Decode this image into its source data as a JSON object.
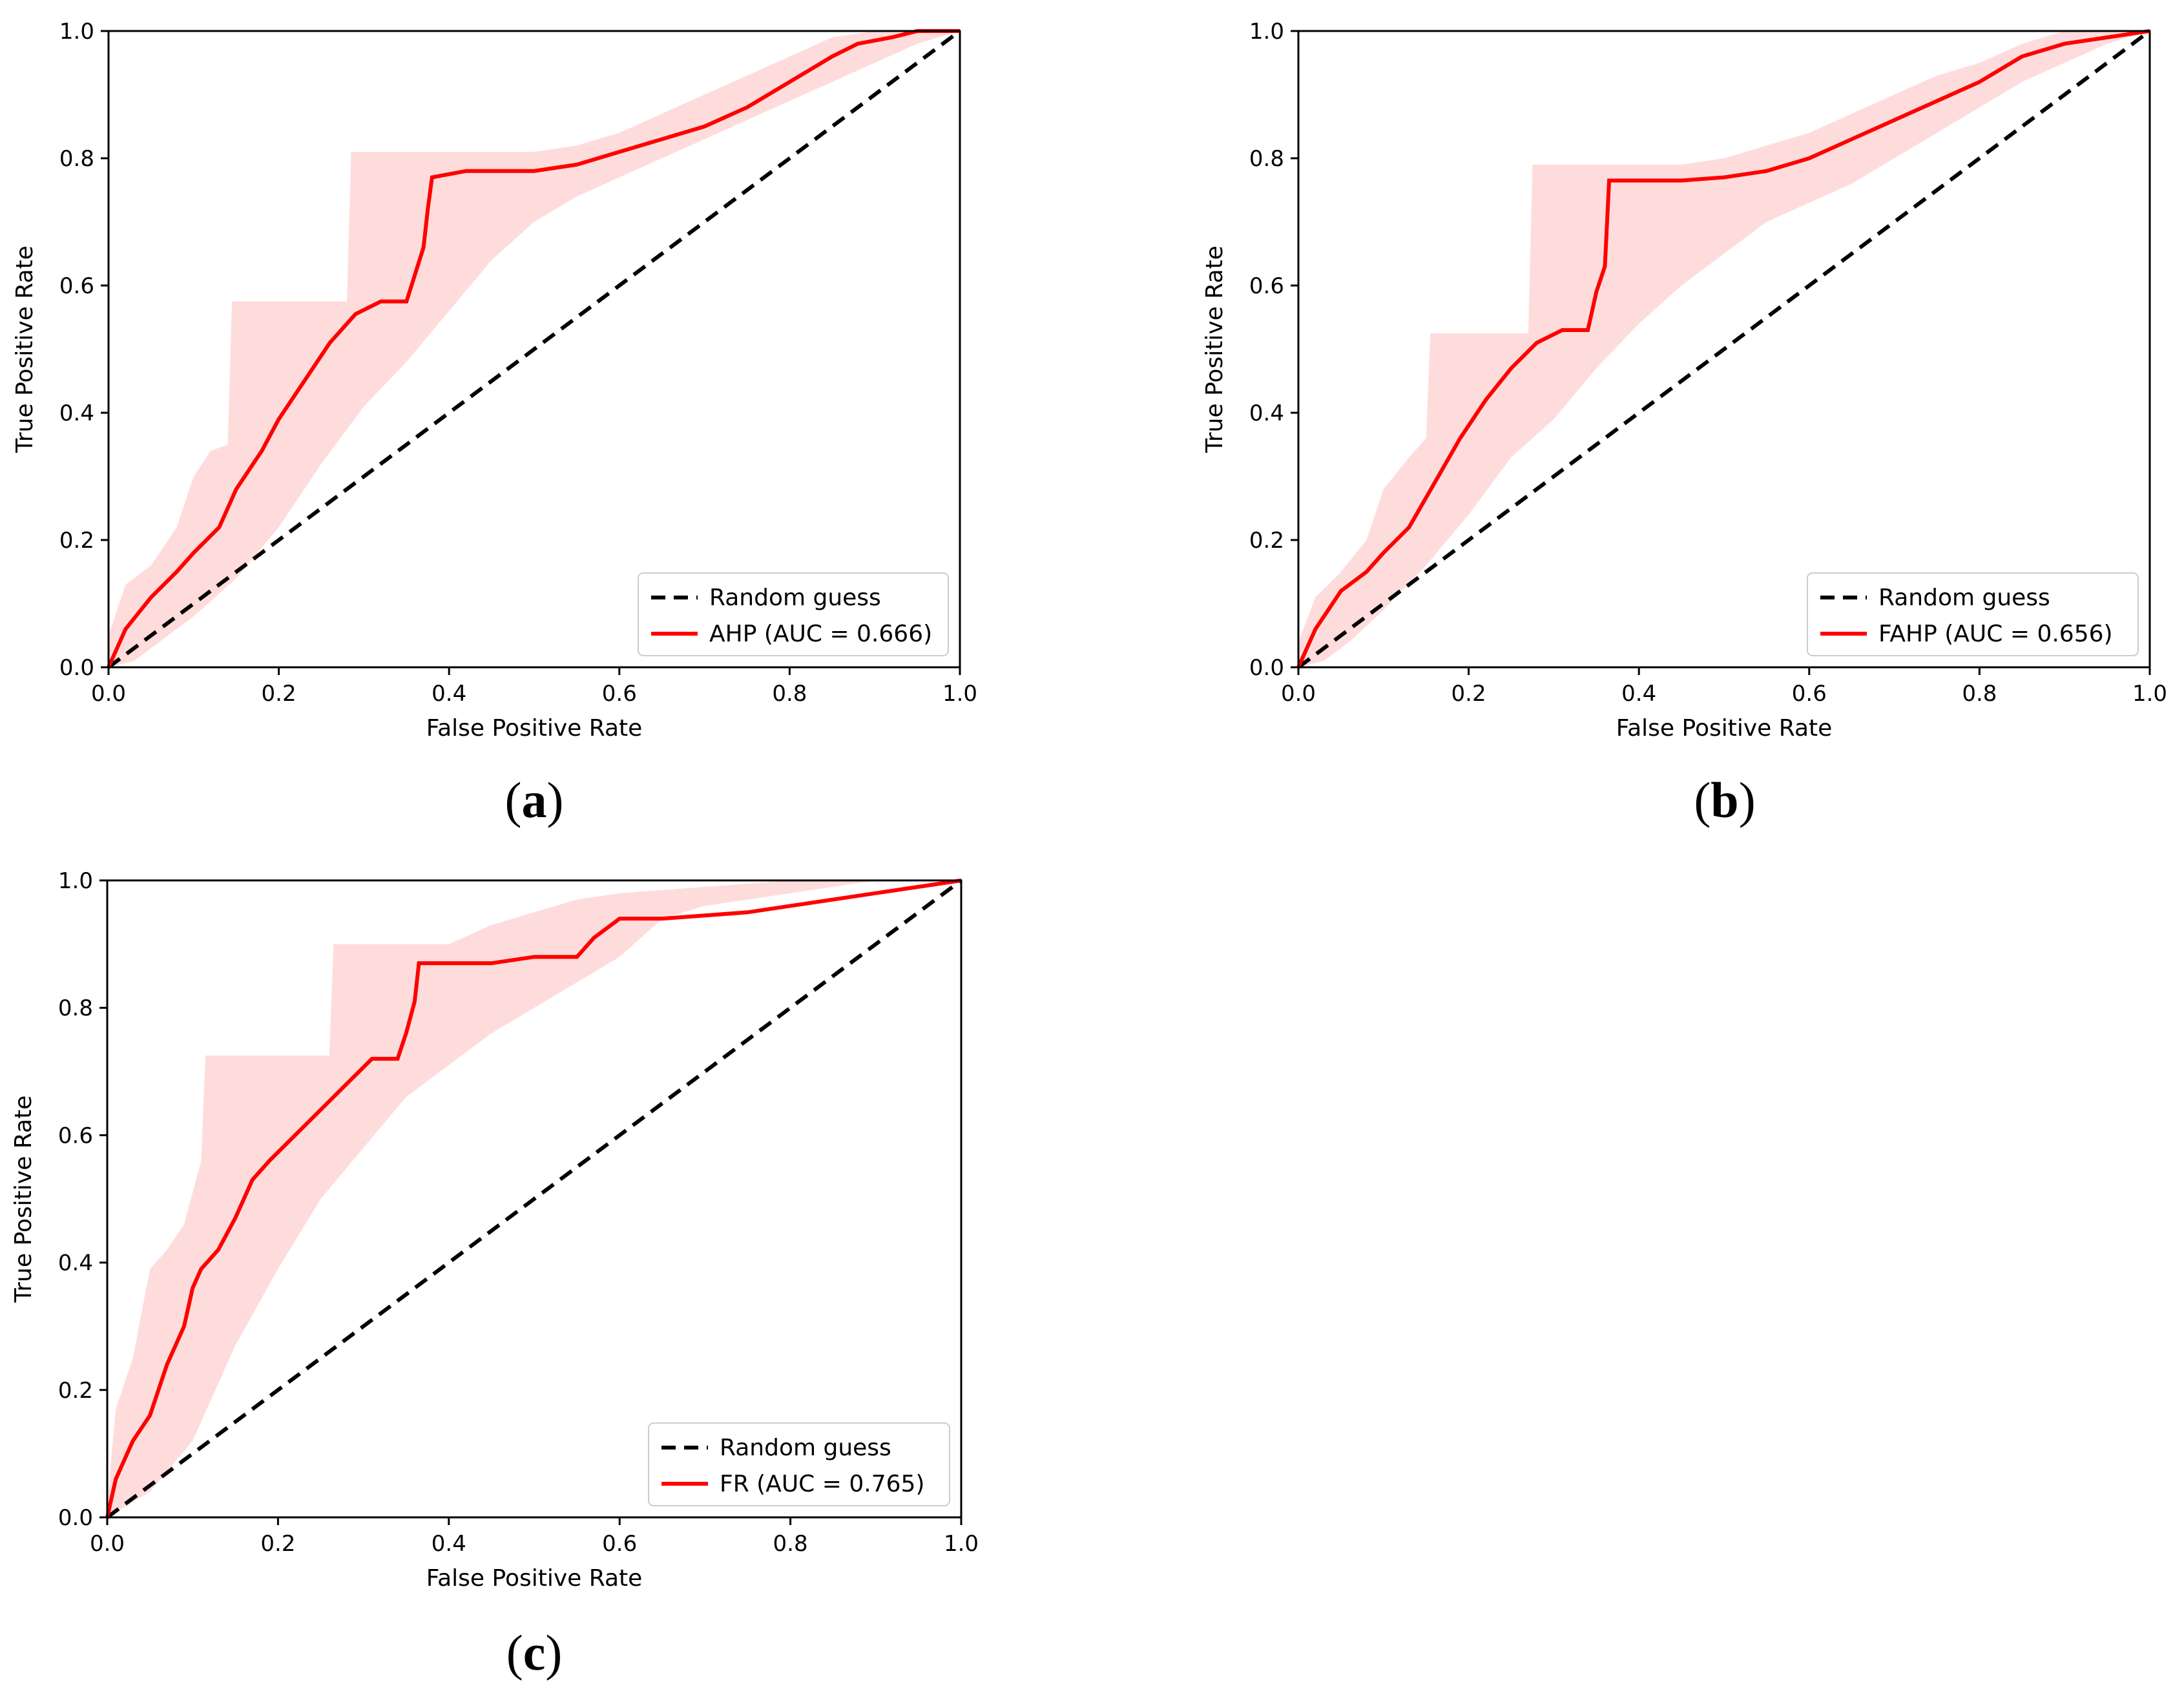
{
  "colors": {
    "roc_line": "#ff0000",
    "ci_band": "#ffd6d6",
    "random_line": "#000000",
    "axes": "#000000"
  },
  "chart_data": [
    {
      "type": "line",
      "panel_label": "a",
      "xlabel": "False Positive Rate",
      "ylabel": "True Positive Rate",
      "xlim": [
        0.0,
        1.0
      ],
      "ylim": [
        0.0,
        1.0
      ],
      "xticks": [
        "0.0",
        "0.2",
        "0.4",
        "0.6",
        "0.8",
        "1.0"
      ],
      "yticks": [
        "0.0",
        "0.2",
        "0.4",
        "0.6",
        "0.8",
        "1.0"
      ],
      "grid": false,
      "legend_position": "lower-right",
      "series": [
        {
          "name": "Random guess",
          "style": "dashed",
          "x": [
            0,
            1
          ],
          "y": [
            0,
            1
          ]
        },
        {
          "name": "AHP (AUC = 0.666)",
          "style": "solid",
          "x": [
            0,
            0.02,
            0.05,
            0.08,
            0.1,
            0.13,
            0.15,
            0.18,
            0.2,
            0.23,
            0.26,
            0.29,
            0.32,
            0.35,
            0.37,
            0.375,
            0.38,
            0.42,
            0.5,
            0.55,
            0.6,
            0.65,
            0.7,
            0.75,
            0.8,
            0.85,
            0.88,
            0.92,
            0.95,
            1.0
          ],
          "y": [
            0,
            0.06,
            0.11,
            0.15,
            0.18,
            0.22,
            0.28,
            0.34,
            0.39,
            0.45,
            0.51,
            0.555,
            0.575,
            0.575,
            0.66,
            0.72,
            0.77,
            0.78,
            0.78,
            0.79,
            0.81,
            0.83,
            0.85,
            0.88,
            0.92,
            0.96,
            0.98,
            0.99,
            1.0,
            1.0
          ]
        },
        {
          "name": "CI upper",
          "style": "band-upper",
          "x": [
            0,
            0.02,
            0.05,
            0.08,
            0.1,
            0.12,
            0.14,
            0.145,
            0.28,
            0.285,
            0.32,
            0.36,
            0.4,
            0.5,
            0.55,
            0.6,
            0.65,
            0.7,
            0.75,
            0.8,
            0.85,
            0.9,
            0.95,
            1.0
          ],
          "y": [
            0.05,
            0.13,
            0.16,
            0.22,
            0.3,
            0.34,
            0.35,
            0.575,
            0.575,
            0.81,
            0.81,
            0.81,
            0.81,
            0.81,
            0.82,
            0.84,
            0.87,
            0.9,
            0.93,
            0.96,
            0.99,
            1.0,
            1.0,
            1.0
          ]
        },
        {
          "name": "CI lower",
          "style": "band-lower",
          "x": [
            0,
            0.03,
            0.06,
            0.1,
            0.15,
            0.2,
            0.25,
            0.3,
            0.35,
            0.4,
            0.45,
            0.5,
            0.55,
            0.6,
            0.65,
            0.7,
            0.75,
            0.8,
            0.85,
            0.9,
            0.95,
            1.0
          ],
          "y": [
            0,
            0.01,
            0.04,
            0.08,
            0.14,
            0.22,
            0.32,
            0.41,
            0.48,
            0.56,
            0.64,
            0.7,
            0.74,
            0.77,
            0.8,
            0.83,
            0.86,
            0.89,
            0.92,
            0.95,
            0.98,
            1.0
          ]
        }
      ]
    },
    {
      "type": "line",
      "panel_label": "b",
      "xlabel": "False Positive Rate",
      "ylabel": "True Positive Rate",
      "xlim": [
        0.0,
        1.0
      ],
      "ylim": [
        0.0,
        1.0
      ],
      "xticks": [
        "0.0",
        "0.2",
        "0.4",
        "0.6",
        "0.8",
        "1.0"
      ],
      "yticks": [
        "0.0",
        "0.2",
        "0.4",
        "0.6",
        "0.8",
        "1.0"
      ],
      "grid": false,
      "legend_position": "lower-right",
      "series": [
        {
          "name": "Random guess",
          "style": "dashed",
          "x": [
            0,
            1
          ],
          "y": [
            0,
            1
          ]
        },
        {
          "name": "FAHP (AUC = 0.656)",
          "style": "solid",
          "x": [
            0,
            0.02,
            0.05,
            0.08,
            0.1,
            0.13,
            0.16,
            0.19,
            0.22,
            0.25,
            0.28,
            0.31,
            0.34,
            0.35,
            0.36,
            0.365,
            0.4,
            0.45,
            0.5,
            0.55,
            0.6,
            0.65,
            0.7,
            0.75,
            0.8,
            0.85,
            0.9,
            0.95,
            1.0
          ],
          "y": [
            0,
            0.06,
            0.12,
            0.15,
            0.18,
            0.22,
            0.29,
            0.36,
            0.42,
            0.47,
            0.51,
            0.53,
            0.53,
            0.59,
            0.63,
            0.765,
            0.765,
            0.765,
            0.77,
            0.78,
            0.8,
            0.83,
            0.86,
            0.89,
            0.92,
            0.96,
            0.98,
            0.99,
            1.0
          ]
        },
        {
          "name": "CI upper",
          "style": "band-upper",
          "x": [
            0,
            0.02,
            0.05,
            0.08,
            0.1,
            0.13,
            0.15,
            0.155,
            0.27,
            0.275,
            0.3,
            0.35,
            0.4,
            0.45,
            0.5,
            0.55,
            0.6,
            0.65,
            0.7,
            0.75,
            0.8,
            0.85,
            0.9,
            0.95,
            1.0
          ],
          "y": [
            0.04,
            0.11,
            0.15,
            0.2,
            0.28,
            0.33,
            0.36,
            0.525,
            0.525,
            0.79,
            0.79,
            0.79,
            0.79,
            0.79,
            0.8,
            0.82,
            0.84,
            0.87,
            0.9,
            0.93,
            0.95,
            0.98,
            1.0,
            1.0,
            1.0
          ]
        },
        {
          "name": "CI lower",
          "style": "band-lower",
          "x": [
            0,
            0.03,
            0.06,
            0.1,
            0.15,
            0.2,
            0.25,
            0.3,
            0.35,
            0.4,
            0.45,
            0.5,
            0.55,
            0.6,
            0.65,
            0.7,
            0.75,
            0.8,
            0.85,
            0.9,
            0.95,
            1.0
          ],
          "y": [
            0,
            0.01,
            0.04,
            0.09,
            0.16,
            0.24,
            0.33,
            0.39,
            0.47,
            0.54,
            0.6,
            0.65,
            0.7,
            0.73,
            0.76,
            0.8,
            0.84,
            0.88,
            0.92,
            0.95,
            0.98,
            1.0
          ]
        }
      ]
    },
    {
      "type": "line",
      "panel_label": "c",
      "xlabel": "False Positive Rate",
      "ylabel": "True Positive Rate",
      "xlim": [
        0.0,
        1.0
      ],
      "ylim": [
        0.0,
        1.0
      ],
      "xticks": [
        "0.0",
        "0.2",
        "0.4",
        "0.6",
        "0.8",
        "1.0"
      ],
      "yticks": [
        "0.0",
        "0.2",
        "0.4",
        "0.6",
        "0.8",
        "1.0"
      ],
      "grid": false,
      "legend_position": "lower-right",
      "series": [
        {
          "name": "Random guess",
          "style": "dashed",
          "x": [
            0,
            1
          ],
          "y": [
            0,
            1
          ]
        },
        {
          "name": "FR (AUC = 0.765)",
          "style": "solid",
          "x": [
            0,
            0.01,
            0.03,
            0.05,
            0.07,
            0.09,
            0.1,
            0.11,
            0.13,
            0.15,
            0.17,
            0.19,
            0.22,
            0.25,
            0.28,
            0.31,
            0.34,
            0.35,
            0.36,
            0.365,
            0.4,
            0.45,
            0.5,
            0.55,
            0.57,
            0.6,
            0.65,
            0.7,
            0.75,
            0.8,
            0.85,
            0.9,
            0.95,
            1.0
          ],
          "y": [
            0,
            0.06,
            0.12,
            0.16,
            0.24,
            0.3,
            0.36,
            0.39,
            0.42,
            0.47,
            0.53,
            0.56,
            0.6,
            0.64,
            0.68,
            0.72,
            0.72,
            0.76,
            0.81,
            0.87,
            0.87,
            0.87,
            0.88,
            0.88,
            0.91,
            0.94,
            0.94,
            0.945,
            0.95,
            0.96,
            0.97,
            0.98,
            0.99,
            1.0
          ]
        },
        {
          "name": "CI upper",
          "style": "band-upper",
          "x": [
            0,
            0.005,
            0.01,
            0.03,
            0.05,
            0.07,
            0.09,
            0.11,
            0.115,
            0.26,
            0.265,
            0.4,
            0.45,
            0.5,
            0.55,
            0.6,
            0.7,
            0.8,
            0.9,
            1.0
          ],
          "y": [
            0,
            0.1,
            0.17,
            0.25,
            0.39,
            0.42,
            0.46,
            0.56,
            0.725,
            0.725,
            0.9,
            0.9,
            0.93,
            0.95,
            0.97,
            0.98,
            0.99,
            1.0,
            1.0,
            1.0
          ]
        },
        {
          "name": "CI lower",
          "style": "band-lower",
          "x": [
            0,
            0.05,
            0.1,
            0.15,
            0.2,
            0.25,
            0.3,
            0.35,
            0.4,
            0.45,
            0.5,
            0.55,
            0.6,
            0.65,
            0.7,
            0.75,
            0.8,
            0.85,
            0.9,
            0.95,
            1.0
          ],
          "y": [
            0,
            0.04,
            0.12,
            0.27,
            0.39,
            0.5,
            0.58,
            0.66,
            0.71,
            0.76,
            0.8,
            0.84,
            0.88,
            0.94,
            0.96,
            0.97,
            0.98,
            0.99,
            1.0,
            1.0,
            1.0
          ]
        }
      ]
    }
  ]
}
